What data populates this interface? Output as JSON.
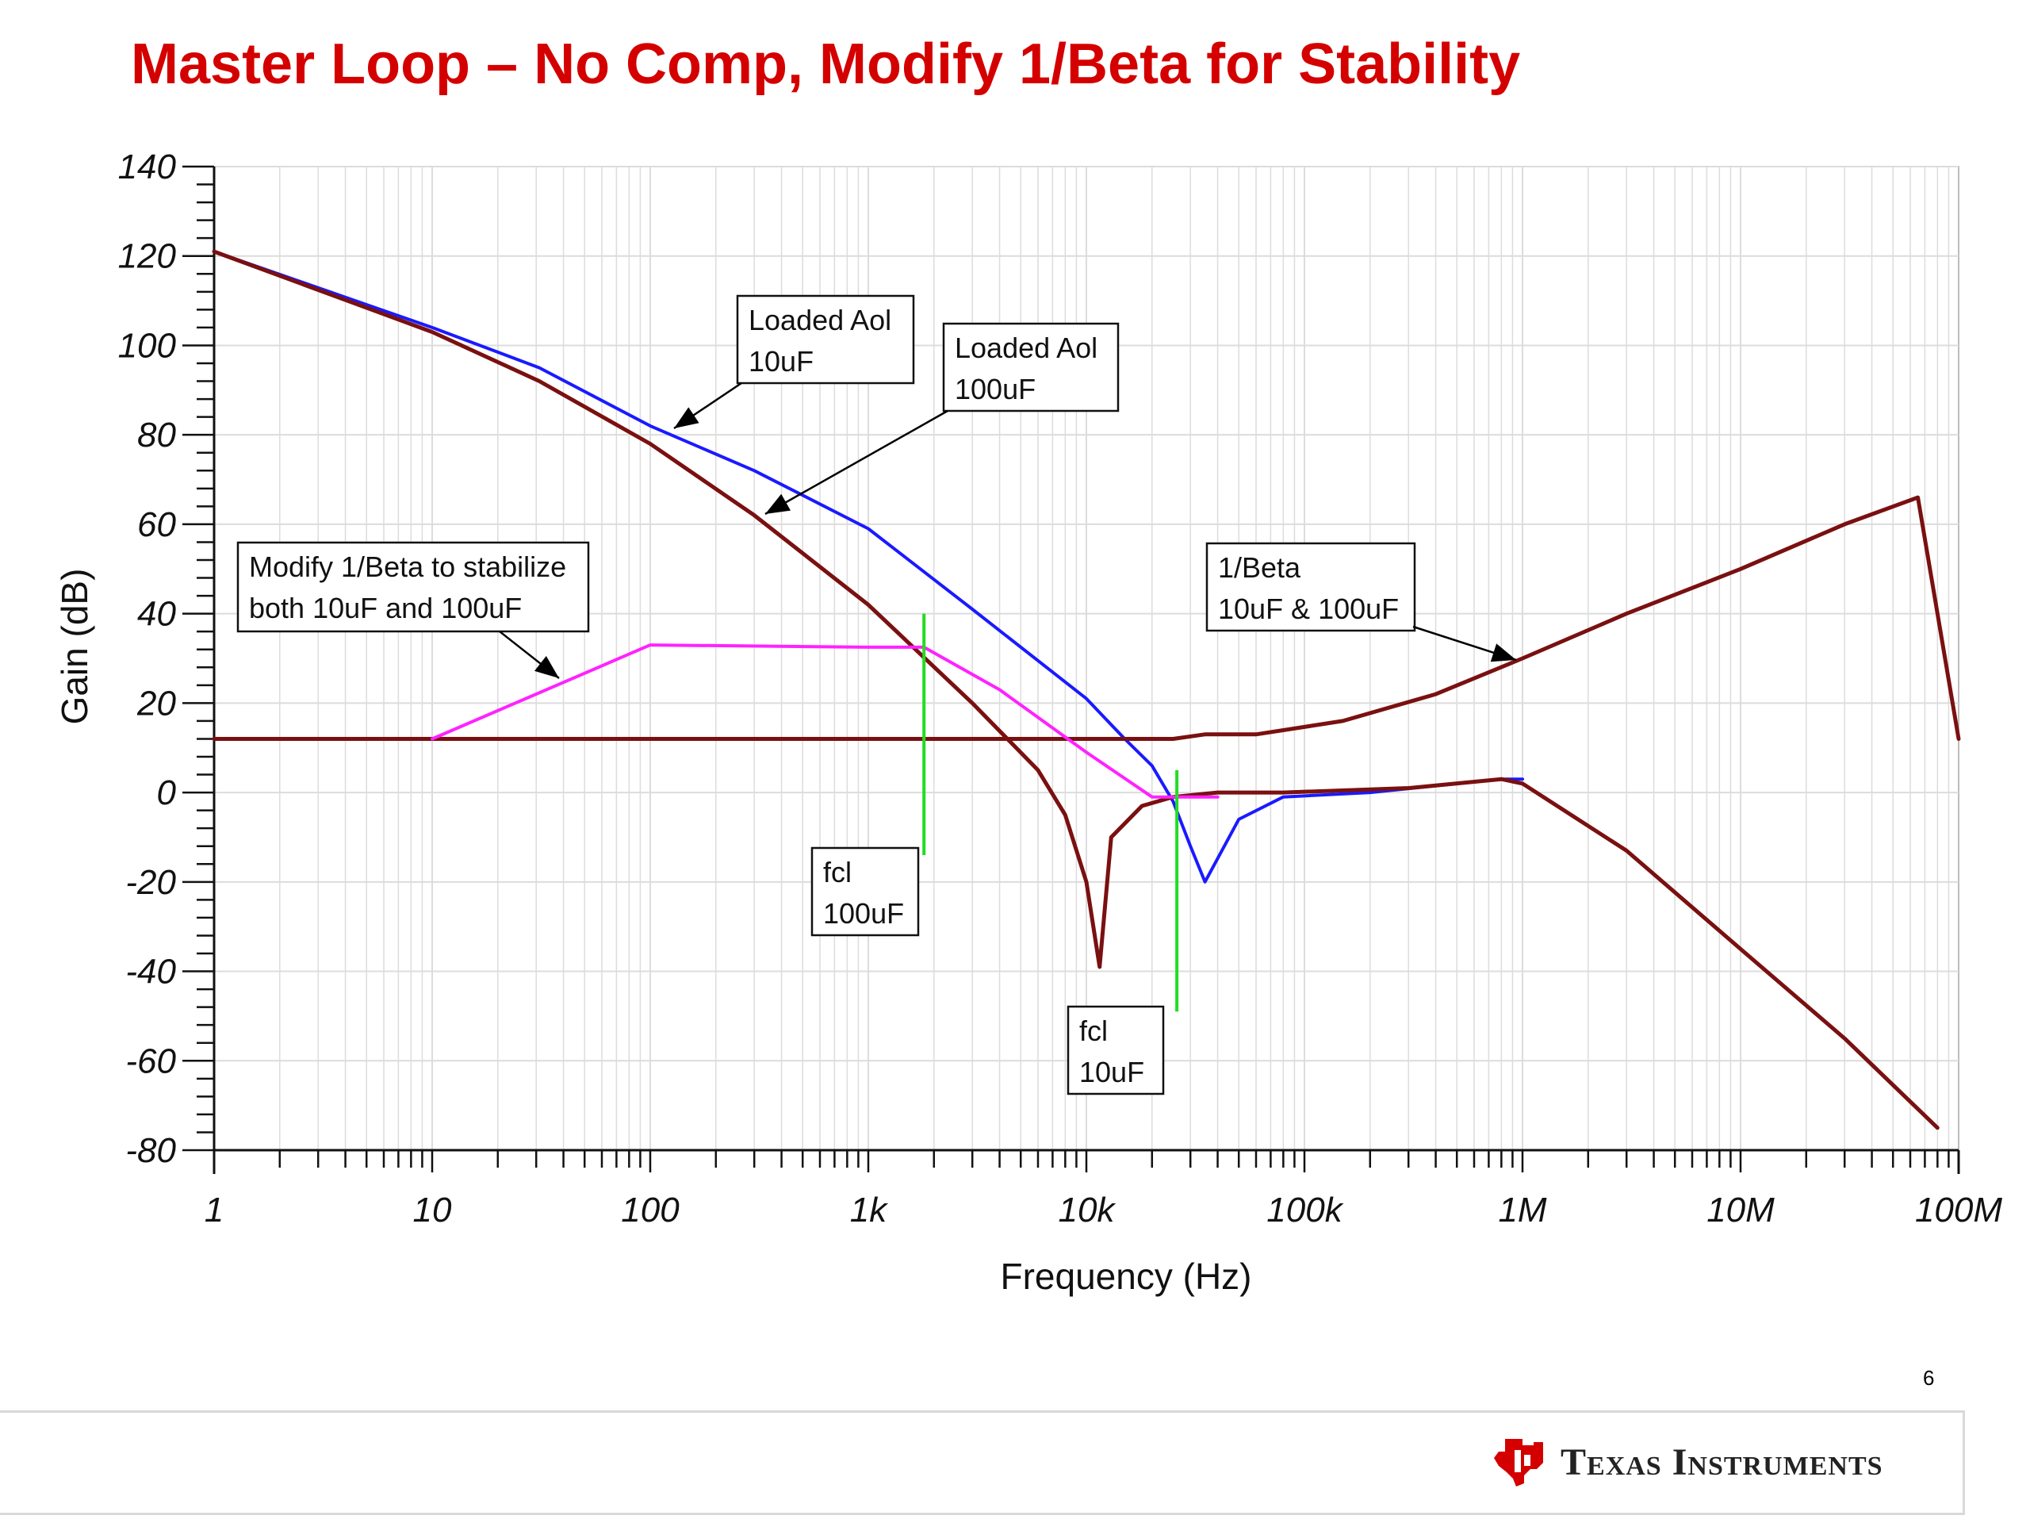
{
  "slide": {
    "title": "Master Loop – No Comp, Modify 1/Beta for Stability",
    "page_number": "6",
    "logo_text": "Texas Instruments"
  },
  "colors": {
    "title": "#d40000",
    "loaded_aol_10uf": "#1a1aff",
    "curve_dark_red": "#7a1010",
    "modified_beta": "#ff22ff",
    "fcl_marker": "#22dd22",
    "grid": "#dcdcdc"
  },
  "chart_data": {
    "type": "line",
    "xscale": "log",
    "xlim": [
      1,
      100000000
    ],
    "ylim": [
      -80,
      140
    ],
    "xlabel": "Frequency (Hz)",
    "ylabel": "Gain (dB)",
    "grid": true,
    "xticks": [
      {
        "value": 1,
        "label": "1"
      },
      {
        "value": 10,
        "label": "10"
      },
      {
        "value": 100,
        "label": "100"
      },
      {
        "value": 1000,
        "label": "1k"
      },
      {
        "value": 10000,
        "label": "10k"
      },
      {
        "value": 100000,
        "label": "100k"
      },
      {
        "value": 1000000,
        "label": "1M"
      },
      {
        "value": 10000000,
        "label": "10M"
      },
      {
        "value": 100000000,
        "label": "100M"
      }
    ],
    "yticks": [
      140,
      120,
      100,
      80,
      60,
      40,
      20,
      0,
      -20,
      -40,
      -60,
      -80
    ],
    "series": [
      {
        "key": "aol_10uf",
        "color": "#1a1aff",
        "width": 4,
        "x": [
          1,
          10,
          31,
          100,
          300,
          1000,
          3000,
          10000,
          15000,
          20000,
          25000,
          30000,
          35000,
          50000,
          80000,
          200000,
          800000,
          1000000
        ],
        "y": [
          121,
          104,
          95,
          82,
          72,
          59,
          41,
          21,
          12,
          6,
          -2,
          -12,
          -20,
          -6,
          -1,
          0,
          3,
          3
        ]
      },
      {
        "key": "aol_100uf",
        "color": "#7a1010",
        "width": 5,
        "x": [
          1,
          10,
          31,
          100,
          300,
          1000,
          3000,
          6000,
          8000,
          10000,
          11500,
          13000,
          18000,
          25000,
          40000,
          80000,
          300000,
          800000,
          1000000,
          3000000,
          10000000,
          30000000,
          80000000
        ],
        "y": [
          121,
          103,
          92,
          78,
          62,
          42,
          20,
          5,
          -5,
          -20,
          -39,
          -10,
          -3,
          -1,
          0,
          0,
          1,
          3,
          2,
          -13,
          -35,
          -55,
          -75
        ]
      },
      {
        "key": "inv_beta",
        "color": "#7a1010",
        "width": 5,
        "x": [
          1,
          10,
          100,
          1000,
          10000,
          25000,
          35000,
          60000,
          150000,
          400000,
          1000000,
          3000000,
          10000000,
          30000000,
          65000000,
          100000000
        ],
        "y": [
          12,
          12,
          12,
          12,
          12,
          12,
          13,
          13,
          16,
          22,
          30,
          40,
          50,
          60,
          66,
          12
        ]
      },
      {
        "key": "mod_beta",
        "color": "#ff22ff",
        "width": 4,
        "x": [
          10,
          100,
          1000,
          1800,
          4000,
          10000,
          20000,
          40000
        ],
        "y": [
          12,
          33,
          32.5,
          32.5,
          23,
          9,
          -1,
          -1
        ]
      }
    ],
    "markers": [
      {
        "key": "fcl_100uf",
        "x": 1800,
        "y_from": -14,
        "y_to": 40
      },
      {
        "key": "fcl_10uf",
        "x": 26000,
        "y_from": -49,
        "y_to": 5
      }
    ],
    "annotations": [
      {
        "key": "loaded_aol_10uf",
        "lines": [
          "Loaded Aol",
          "10uF"
        ],
        "anchor_x": 130,
        "anchor_y": 81,
        "side": "below-left"
      },
      {
        "key": "loaded_aol_100uf",
        "lines": [
          "Loaded Aol",
          "100uF"
        ],
        "anchor_x": 320,
        "anchor_y": 62,
        "side": "below-left"
      },
      {
        "key": "modify_beta",
        "lines": [
          "Modify 1/Beta to stabilize",
          "both 10uF and 100uF"
        ],
        "anchor_x": 40,
        "anchor_y": 24,
        "side": "above"
      },
      {
        "key": "inv_beta",
        "lines": [
          "1/Beta",
          "10uF & 100uF"
        ],
        "anchor_x": 900000,
        "anchor_y": 28,
        "side": "above-left"
      },
      {
        "key": "fcl_100uf",
        "lines": [
          "fcl",
          "100uF"
        ]
      },
      {
        "key": "fcl_10uf",
        "lines": [
          "fcl",
          "10uF"
        ]
      }
    ]
  }
}
